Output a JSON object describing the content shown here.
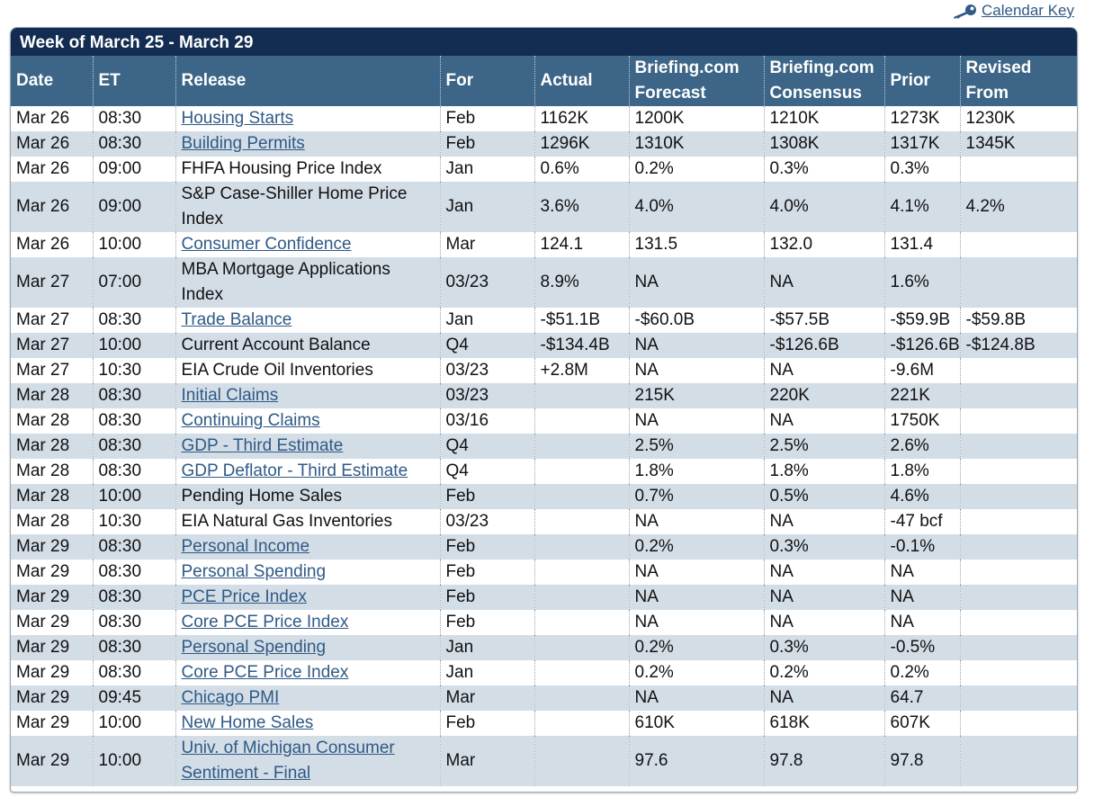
{
  "calendar_key": {
    "label": "Calendar Key",
    "icon": "key-icon"
  },
  "week_title": "Week of March 25 - March 29",
  "columns": [
    "Date",
    "ET",
    "Release",
    "For",
    "Actual",
    "Briefing.com Forecast",
    "Briefing.com Consensus",
    "Prior",
    "Revised From"
  ],
  "rows": [
    {
      "date": "Mar 26",
      "et": "08:30",
      "release": "Housing Starts",
      "link": true,
      "for": "Feb",
      "actual": "1162K",
      "forecast": "1200K",
      "consensus": "1210K",
      "prior": "1273K",
      "revised": "1230K"
    },
    {
      "date": "Mar 26",
      "et": "08:30",
      "release": "Building Permits",
      "link": true,
      "for": "Feb",
      "actual": "1296K",
      "forecast": "1310K",
      "consensus": "1308K",
      "prior": "1317K",
      "revised": "1345K"
    },
    {
      "date": "Mar 26",
      "et": "09:00",
      "release": "FHFA Housing Price Index",
      "link": false,
      "for": "Jan",
      "actual": "0.6%",
      "forecast": "0.2%",
      "consensus": "0.3%",
      "prior": "0.3%",
      "revised": ""
    },
    {
      "date": "Mar 26",
      "et": "09:00",
      "release": "S&P Case-Shiller Home Price Index",
      "link": false,
      "for": "Jan",
      "actual": "3.6%",
      "forecast": "4.0%",
      "consensus": "4.0%",
      "prior": "4.1%",
      "revised": "4.2%"
    },
    {
      "date": "Mar 26",
      "et": "10:00",
      "release": "Consumer Confidence",
      "link": true,
      "for": "Mar",
      "actual": "124.1",
      "forecast": "131.5",
      "consensus": "132.0",
      "prior": "131.4",
      "revised": ""
    },
    {
      "date": "Mar 27",
      "et": "07:00",
      "release": "MBA Mortgage Applications Index",
      "link": false,
      "for": "03/23",
      "actual": "8.9%",
      "forecast": "NA",
      "consensus": "NA",
      "prior": "1.6%",
      "revised": ""
    },
    {
      "date": "Mar 27",
      "et": "08:30",
      "release": "Trade Balance",
      "link": true,
      "for": "Jan",
      "actual": "-$51.1B",
      "forecast": "-$60.0B",
      "consensus": "-$57.5B",
      "prior": "-$59.9B",
      "revised": "-$59.8B"
    },
    {
      "date": "Mar 27",
      "et": "10:00",
      "release": "Current Account Balance",
      "link": false,
      "for": "Q4",
      "actual": "-$134.4B",
      "forecast": "NA",
      "consensus": "-$126.6B",
      "prior": "-$126.6B",
      "revised": "-$124.8B"
    },
    {
      "date": "Mar 27",
      "et": "10:30",
      "release": "EIA Crude Oil Inventories",
      "link": false,
      "for": "03/23",
      "actual": "+2.8M",
      "forecast": "NA",
      "consensus": "NA",
      "prior": "-9.6M",
      "revised": ""
    },
    {
      "date": "Mar 28",
      "et": "08:30",
      "release": "Initial Claims",
      "link": true,
      "for": "03/23",
      "actual": "",
      "forecast": "215K",
      "consensus": "220K",
      "prior": "221K",
      "revised": ""
    },
    {
      "date": "Mar 28",
      "et": "08:30",
      "release": "Continuing Claims",
      "link": true,
      "for": "03/16",
      "actual": "",
      "forecast": "NA",
      "consensus": "NA",
      "prior": "1750K",
      "revised": ""
    },
    {
      "date": "Mar 28",
      "et": "08:30",
      "release": "GDP - Third Estimate",
      "link": true,
      "for": "Q4",
      "actual": "",
      "forecast": "2.5%",
      "consensus": "2.5%",
      "prior": "2.6%",
      "revised": ""
    },
    {
      "date": "Mar 28",
      "et": "08:30",
      "release": "GDP Deflator - Third Estimate",
      "link": true,
      "for": "Q4",
      "actual": "",
      "forecast": "1.8%",
      "consensus": "1.8%",
      "prior": "1.8%",
      "revised": ""
    },
    {
      "date": "Mar 28",
      "et": "10:00",
      "release": "Pending Home Sales",
      "link": false,
      "for": "Feb",
      "actual": "",
      "forecast": "0.7%",
      "consensus": "0.5%",
      "prior": "4.6%",
      "revised": ""
    },
    {
      "date": "Mar 28",
      "et": "10:30",
      "release": "EIA Natural Gas Inventories",
      "link": false,
      "for": "03/23",
      "actual": "",
      "forecast": "NA",
      "consensus": "NA",
      "prior": "-47 bcf",
      "revised": ""
    },
    {
      "date": "Mar 29",
      "et": "08:30",
      "release": "Personal Income",
      "link": true,
      "for": "Feb",
      "actual": "",
      "forecast": "0.2%",
      "consensus": "0.3%",
      "prior": "-0.1%",
      "revised": ""
    },
    {
      "date": "Mar 29",
      "et": "08:30",
      "release": "Personal Spending",
      "link": true,
      "for": "Feb",
      "actual": "",
      "forecast": "NA",
      "consensus": "NA",
      "prior": "NA",
      "revised": ""
    },
    {
      "date": "Mar 29",
      "et": "08:30",
      "release": "PCE Price Index",
      "link": true,
      "for": "Feb",
      "actual": "",
      "forecast": "NA",
      "consensus": "NA",
      "prior": "NA",
      "revised": ""
    },
    {
      "date": "Mar 29",
      "et": "08:30",
      "release": "Core PCE Price Index",
      "link": true,
      "for": "Feb",
      "actual": "",
      "forecast": "NA",
      "consensus": "NA",
      "prior": "NA",
      "revised": ""
    },
    {
      "date": "Mar 29",
      "et": "08:30",
      "release": "Personal Spending",
      "link": true,
      "for": "Jan",
      "actual": "",
      "forecast": "0.2%",
      "consensus": "0.3%",
      "prior": "-0.5%",
      "revised": ""
    },
    {
      "date": "Mar 29",
      "et": "08:30",
      "release": "Core PCE Price Index",
      "link": true,
      "for": "Jan",
      "actual": "",
      "forecast": "0.2%",
      "consensus": "0.2%",
      "prior": "0.2%",
      "revised": ""
    },
    {
      "date": "Mar 29",
      "et": "09:45",
      "release": "Chicago PMI",
      "link": true,
      "for": "Mar",
      "actual": "",
      "forecast": "NA",
      "consensus": "NA",
      "prior": "64.7",
      "revised": ""
    },
    {
      "date": "Mar 29",
      "et": "10:00",
      "release": "New Home Sales",
      "link": true,
      "for": "Feb",
      "actual": "",
      "forecast": "610K",
      "consensus": "618K",
      "prior": "607K",
      "revised": ""
    },
    {
      "date": "Mar 29",
      "et": "10:00",
      "release": "Univ. of Michigan Consumer Sentiment - Final",
      "link": true,
      "for": "Mar",
      "actual": "",
      "forecast": "97.6",
      "consensus": "97.8",
      "prior": "97.8",
      "revised": ""
    }
  ],
  "colors": {
    "header_dark": "#132d52",
    "header": "#3c6587",
    "row_alt": "#d3dde6",
    "link": "#2f5a86"
  }
}
